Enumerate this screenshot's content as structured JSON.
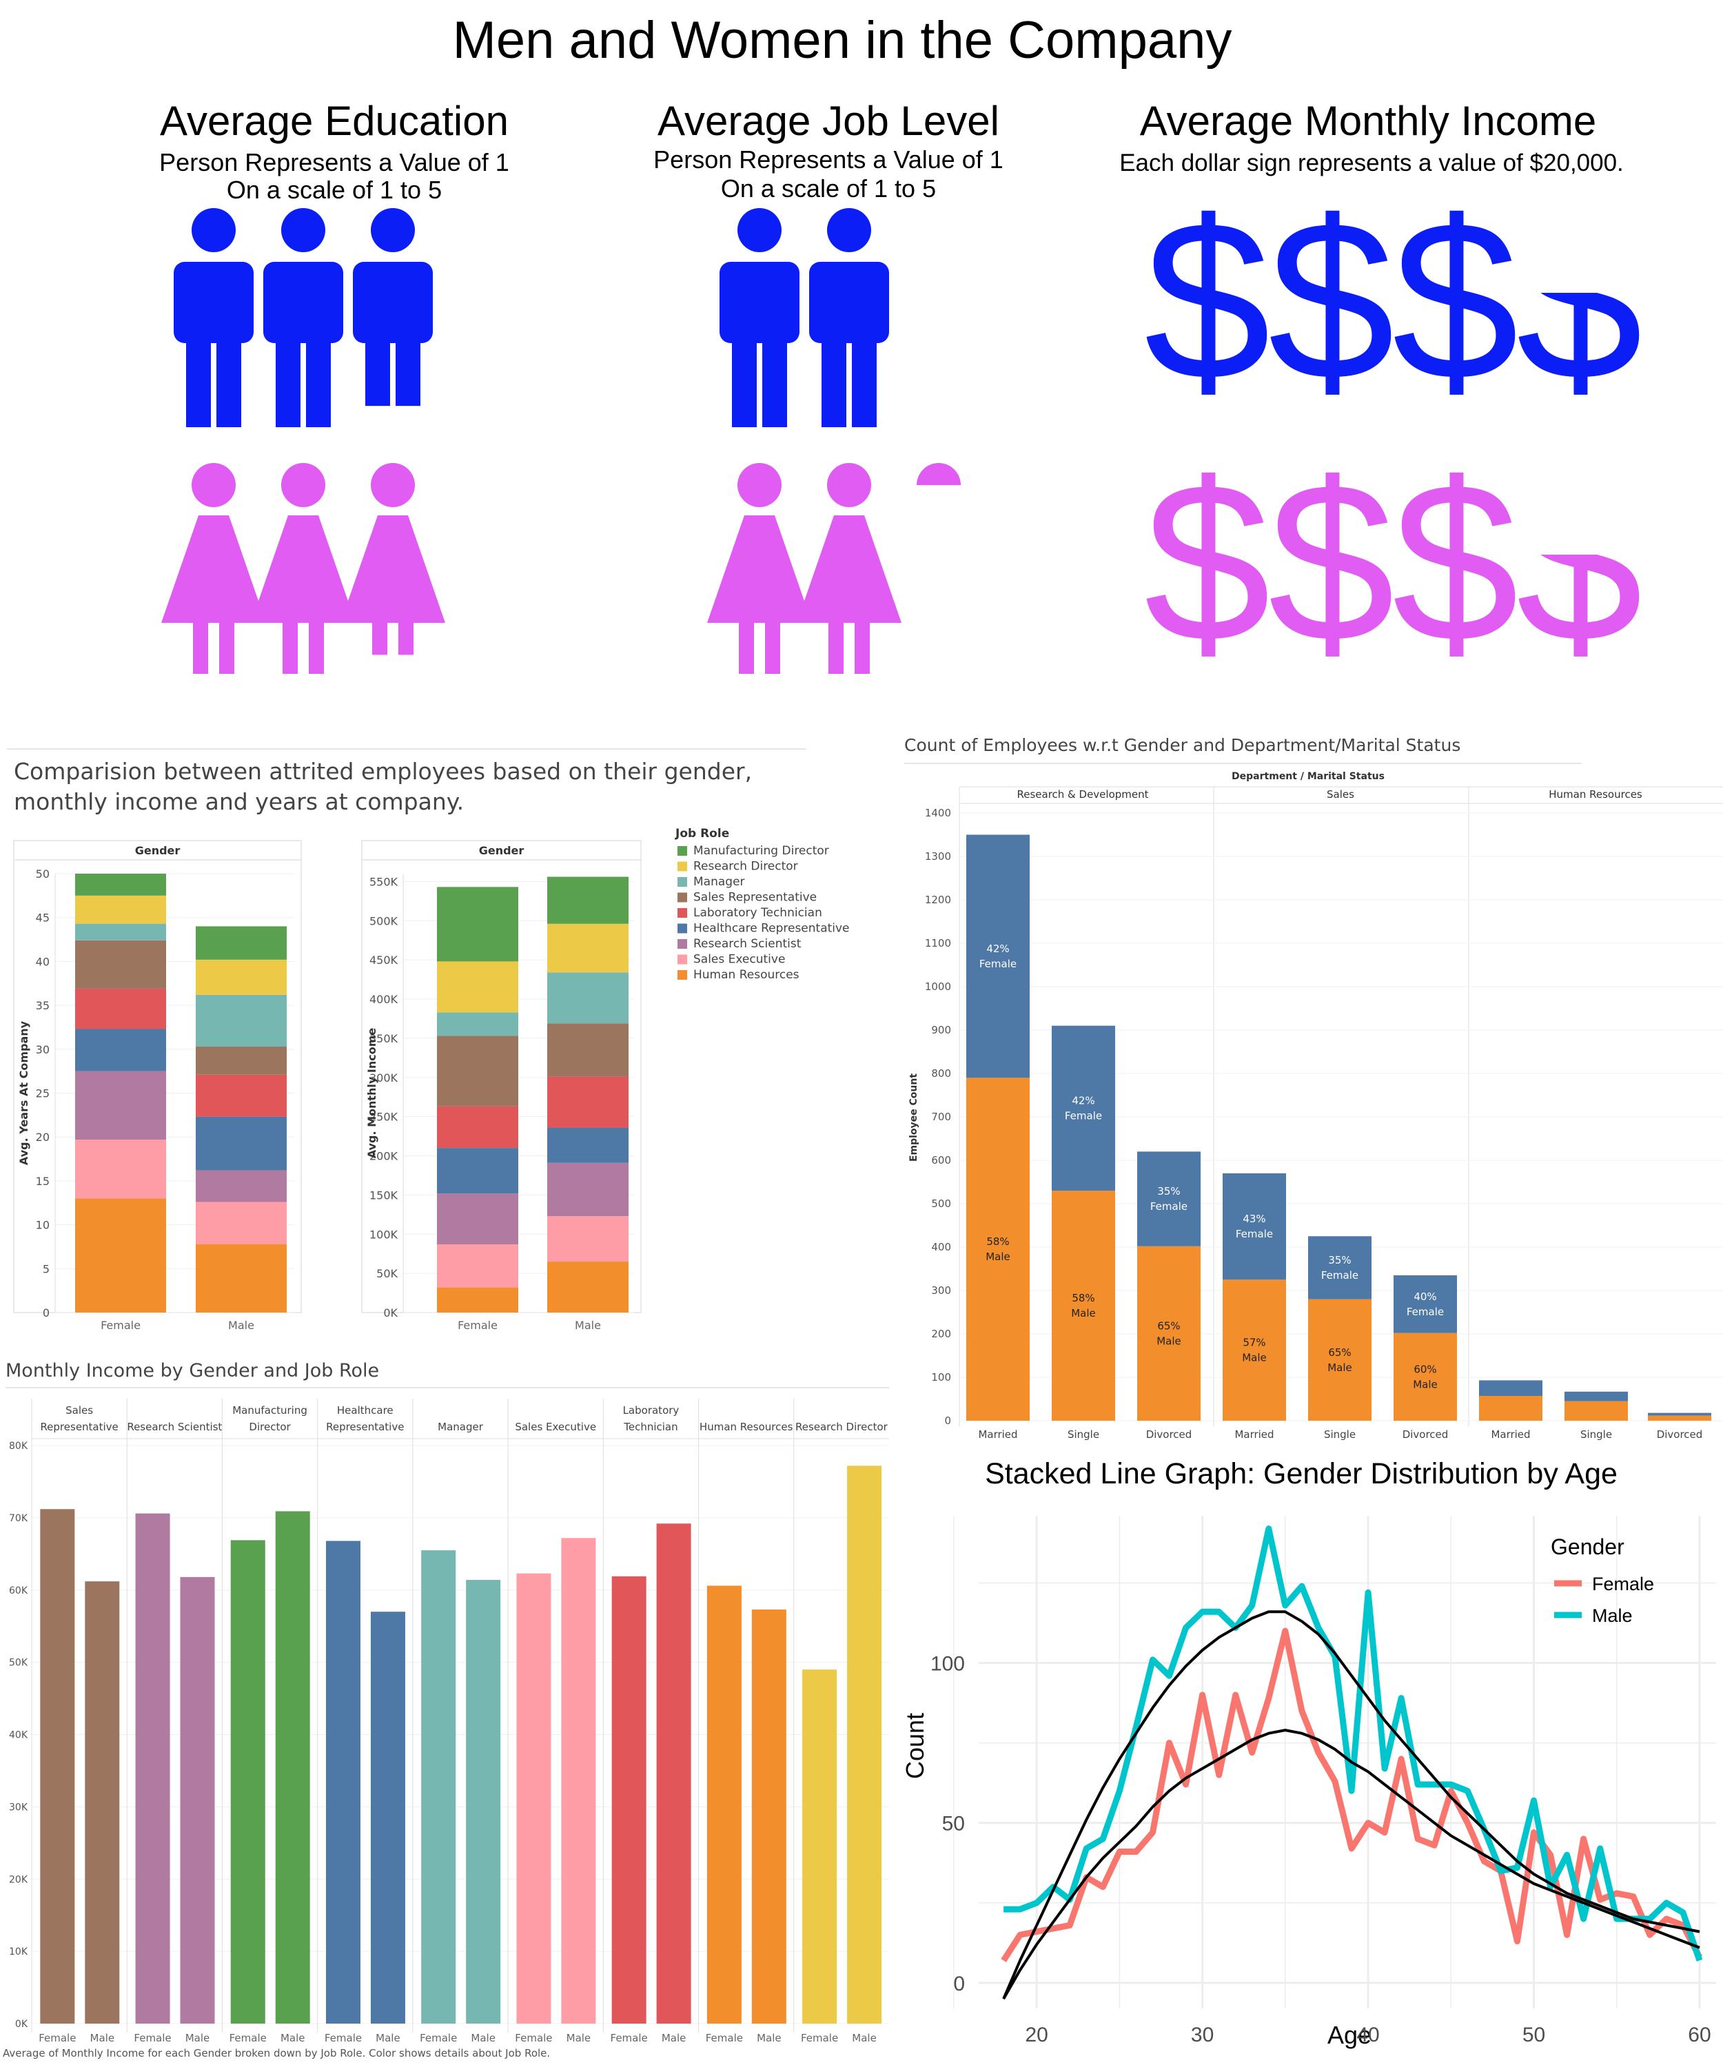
{
  "page": {
    "title": "Men and Women in the Company"
  },
  "colors": {
    "male_icon": "#0a1ef5",
    "female_icon": "#e05cf2",
    "series_female": "#f8766d",
    "series_male": "#00c5cd",
    "trend": "#000000",
    "grid": "#e5e5e5",
    "axis": "#bbbbbb"
  },
  "job_role_colors": {
    "Manufacturing Director": "#59a14f",
    "Research Director": "#edc948",
    "Manager": "#76b7b2",
    "Sales Representative": "#9c755f",
    "Laboratory Technician": "#e15759",
    "Healthcare Representative": "#4e79a7",
    "Research Scientist": "#b07aa1",
    "Sales Executive": "#ff9da7",
    "Human Resources": "#f28e2b"
  },
  "infographic": {
    "education": {
      "title": "Average Education",
      "subtitle1": "Person Represents a Value of 1",
      "subtitle2": "On a scale of 1 to 5",
      "icon": "person-icon",
      "male_value": 2.87,
      "female_value": 2.87
    },
    "job_level": {
      "title": "Average Job Level",
      "subtitle1": "Person Represents a Value of 1",
      "subtitle2": "On a scale of 1 to 5",
      "icon": "person-icon",
      "male_value": 2.0,
      "female_value": 2.1
    },
    "income": {
      "title": "Average Monthly Income",
      "subtitle": "Each dollar sign represents a value of $20,000.",
      "symbol": "$",
      "male_value": 3.5,
      "female_value": 3.5
    }
  },
  "chart_data": [
    {
      "id": "attrition",
      "type": "bar",
      "stacked": true,
      "title": "Comparision between attrited employees based on their gender, monthly income and years at company.",
      "legend_title": "Job Role",
      "legend": [
        "Manufacturing Director",
        "Research Director",
        "Manager",
        "Sales Representative",
        "Laboratory Technician",
        "Healthcare Representative",
        "Research Scientist",
        "Sales Executive",
        "Human Resources"
      ],
      "panels": [
        {
          "header": "Gender",
          "ylabel": "Avg. Years At Company",
          "ylim": [
            0,
            50
          ],
          "ticks": [
            "0",
            "5",
            "10",
            "15",
            "20",
            "25",
            "30",
            "35",
            "40",
            "45",
            "50"
          ],
          "tick_values": [
            0,
            5,
            10,
            15,
            20,
            25,
            30,
            35,
            40,
            45,
            50
          ],
          "categories": [
            "Female",
            "Male"
          ],
          "series": [
            {
              "name": "Human Resources",
              "values": [
                13.0,
                7.8
              ]
            },
            {
              "name": "Sales Executive",
              "values": [
                6.7,
                4.8
              ]
            },
            {
              "name": "Research Scientist",
              "values": [
                7.8,
                3.6
              ]
            },
            {
              "name": "Healthcare Representative",
              "values": [
                4.8,
                6.1
              ]
            },
            {
              "name": "Laboratory Technician",
              "values": [
                4.6,
                4.8
              ]
            },
            {
              "name": "Sales Representative",
              "values": [
                5.5,
                3.2
              ]
            },
            {
              "name": "Manager",
              "values": [
                1.9,
                5.9
              ]
            },
            {
              "name": "Research Director",
              "values": [
                3.2,
                4.0
              ]
            },
            {
              "name": "Manufacturing Director",
              "values": [
                2.5,
                3.8
              ]
            }
          ]
        },
        {
          "header": "Gender",
          "ylabel": "Avg. Monthly Income",
          "ylim": [
            0,
            560000
          ],
          "ticks": [
            "0K",
            "50K",
            "100K",
            "150K",
            "200K",
            "250K",
            "300K",
            "350K",
            "400K",
            "450K",
            "500K",
            "550K"
          ],
          "tick_values": [
            0,
            50000,
            100000,
            150000,
            200000,
            250000,
            300000,
            350000,
            400000,
            450000,
            500000,
            550000
          ],
          "categories": [
            "Female",
            "Male"
          ],
          "series": [
            {
              "name": "Human Resources",
              "values": [
                32000,
                65000
              ]
            },
            {
              "name": "Sales Executive",
              "values": [
                55000,
                58000
              ]
            },
            {
              "name": "Research Scientist",
              "values": [
                65000,
                68000
              ]
            },
            {
              "name": "Healthcare Representative",
              "values": [
                58000,
                45000
              ]
            },
            {
              "name": "Laboratory Technician",
              "values": [
                53000,
                65000
              ]
            },
            {
              "name": "Sales Representative",
              "values": [
                90000,
                68000
              ]
            },
            {
              "name": "Manager",
              "values": [
                30000,
                65000
              ]
            },
            {
              "name": "Research Director",
              "values": [
                65000,
                62000
              ]
            },
            {
              "name": "Manufacturing Director",
              "values": [
                95000,
                60000
              ]
            }
          ]
        }
      ]
    },
    {
      "id": "dept_marital",
      "type": "bar",
      "stacked": true,
      "title": "Count of Employees w.r.t Gender and Department/Marital Status",
      "header": "Department / Marital Status",
      "ylabel": "Employee Count",
      "ylim": [
        0,
        1400
      ],
      "ticks": [
        "0",
        "100",
        "200",
        "300",
        "400",
        "500",
        "600",
        "700",
        "800",
        "900",
        "1000",
        "1100",
        "1200",
        "1300",
        "1400"
      ],
      "tick_values": [
        0,
        100,
        200,
        300,
        400,
        500,
        600,
        700,
        800,
        900,
        1000,
        1100,
        1200,
        1300,
        1400
      ],
      "groups": [
        {
          "name": "Research & Development",
          "bars": [
            {
              "label": "Married",
              "male": 790,
              "female": 560,
              "male_pct": "58%",
              "female_pct": "42%"
            },
            {
              "label": "Single",
              "male": 530,
              "female": 380,
              "male_pct": "58%",
              "female_pct": "42%"
            },
            {
              "label": "Divorced",
              "male": 402,
              "female": 218,
              "male_pct": "65%",
              "female_pct": "35%"
            }
          ]
        },
        {
          "name": "Sales",
          "bars": [
            {
              "label": "Married",
              "male": 325,
              "female": 245,
              "male_pct": "57%",
              "female_pct": "43%"
            },
            {
              "label": "Single",
              "male": 280,
              "female": 145,
              "male_pct": "65%",
              "female_pct": "35%"
            },
            {
              "label": "Divorced",
              "male": 202,
              "female": 133,
              "male_pct": "60%",
              "female_pct": "40%"
            }
          ]
        },
        {
          "name": "Human Resources",
          "bars": [
            {
              "label": "Married",
              "male": 57,
              "female": 36,
              "male_pct": "",
              "female_pct": ""
            },
            {
              "label": "Single",
              "male": 45,
              "female": 22,
              "male_pct": "",
              "female_pct": ""
            },
            {
              "label": "Divorced",
              "male": 12,
              "female": 6,
              "male_pct": "",
              "female_pct": ""
            }
          ]
        }
      ],
      "legend_labels": {
        "female": "Female",
        "male": "Male"
      }
    },
    {
      "id": "income_role",
      "type": "bar",
      "title": "Monthly Income by Gender and Job Role",
      "caption": "Average of Monthly Income for each Gender broken down by Job Role.  Color shows details about Job Role.",
      "ylim": [
        0,
        80000
      ],
      "ticks": [
        "0K",
        "10K",
        "20K",
        "30K",
        "40K",
        "50K",
        "60K",
        "70K",
        "80K"
      ],
      "tick_values": [
        0,
        10000,
        20000,
        30000,
        40000,
        50000,
        60000,
        70000,
        80000
      ],
      "categories": [
        "Female",
        "Male"
      ],
      "groups": [
        {
          "role": "Sales Representative",
          "header": [
            "Sales",
            "Representative"
          ],
          "values": [
            71200,
            61200
          ]
        },
        {
          "role": "Research Scientist",
          "header": [
            "Research Scientist"
          ],
          "values": [
            70600,
            61800
          ]
        },
        {
          "role": "Manufacturing Director",
          "header": [
            "Manufacturing",
            "Director"
          ],
          "values": [
            66900,
            70900
          ]
        },
        {
          "role": "Healthcare Representative",
          "header": [
            "Healthcare",
            "Representative"
          ],
          "values": [
            66800,
            57000
          ]
        },
        {
          "role": "Manager",
          "header": [
            "Manager"
          ],
          "values": [
            65500,
            61400
          ]
        },
        {
          "role": "Sales Executive",
          "header": [
            "Sales Executive"
          ],
          "values": [
            62300,
            67200
          ]
        },
        {
          "role": "Laboratory Technician",
          "header": [
            "Laboratory",
            "Technician"
          ],
          "values": [
            61900,
            69200
          ]
        },
        {
          "role": "Human Resources",
          "header": [
            "Human Resources"
          ],
          "values": [
            60600,
            57300
          ]
        },
        {
          "role": "Research Director",
          "header": [
            "Research Director"
          ],
          "values": [
            49000,
            77200
          ]
        }
      ]
    },
    {
      "id": "age_lines",
      "type": "line",
      "title": "Stacked Line Graph: Gender Distribution by Age",
      "xlabel": "Age",
      "ylabel": "Count",
      "xlim": [
        16.5,
        61
      ],
      "ylim": [
        -8,
        146
      ],
      "x_ticks": [
        20,
        30,
        40,
        50,
        60
      ],
      "y_ticks": [
        0,
        50,
        100
      ],
      "legend_title": "Gender",
      "x": [
        18,
        19,
        20,
        21,
        22,
        23,
        24,
        25,
        26,
        27,
        28,
        29,
        30,
        31,
        32,
        33,
        34,
        35,
        36,
        37,
        38,
        39,
        40,
        41,
        42,
        43,
        44,
        45,
        46,
        47,
        48,
        49,
        50,
        51,
        52,
        53,
        54,
        55,
        56,
        57,
        58,
        59,
        60
      ],
      "series": [
        {
          "name": "Female",
          "values": [
            7,
            15,
            16,
            17,
            18,
            33,
            30,
            41,
            41,
            47,
            75,
            62,
            90,
            65,
            90,
            72,
            89,
            110,
            85,
            72,
            63,
            42,
            50,
            47,
            70,
            45,
            43,
            60,
            50,
            38,
            35,
            13,
            47,
            40,
            15,
            45,
            26,
            28,
            27,
            15,
            20,
            18,
            8
          ]
        },
        {
          "name": "Male",
          "values": [
            23,
            23,
            25,
            30,
            26,
            42,
            45,
            60,
            80,
            101,
            96,
            111,
            116,
            116,
            111,
            118,
            142,
            118,
            124,
            111,
            102,
            60,
            122,
            67,
            89,
            62,
            62,
            62,
            60,
            48,
            35,
            36,
            57,
            30,
            40,
            20,
            42,
            20,
            20,
            20,
            25,
            22,
            7
          ]
        },
        {
          "name": "Female trend",
          "values": [
            -5,
            4,
            12,
            19,
            26,
            33,
            39,
            44,
            49,
            55,
            60,
            64,
            67,
            70,
            73,
            76,
            78,
            79,
            78,
            76,
            73,
            69,
            66,
            62,
            58,
            54,
            50,
            46,
            43,
            40,
            37,
            34,
            31,
            29,
            27,
            25,
            23,
            21,
            19,
            17,
            15,
            13,
            11
          ]
        },
        {
          "name": "Male trend",
          "values": [
            -5,
            7,
            18,
            29,
            40,
            51,
            61,
            70,
            78,
            86,
            93,
            99,
            104,
            108,
            111,
            114,
            116,
            116,
            113,
            109,
            103,
            96,
            89,
            82,
            76,
            70,
            64,
            58,
            53,
            48,
            43,
            38,
            34,
            31,
            28,
            26,
            24,
            22,
            20,
            19,
            18,
            17,
            16
          ]
        }
      ]
    }
  ]
}
